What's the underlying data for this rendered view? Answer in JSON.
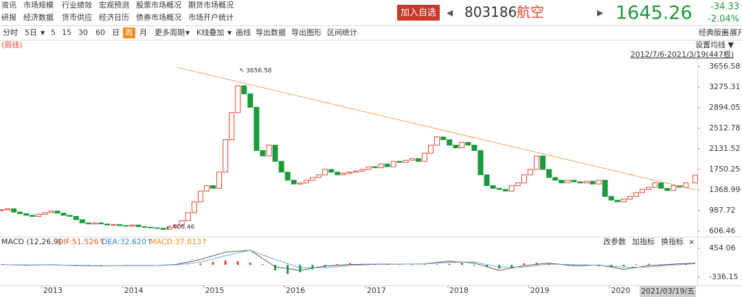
{
  "nav": {
    "row1": [
      "资讯",
      "市场规模",
      "行业绩效",
      "宏观预测",
      "股票市场概况",
      "期货市场概况"
    ],
    "row2": [
      "研报",
      "经济数据",
      "货币供应",
      "经济日历",
      "债券市场概况",
      "市场开户统计"
    ]
  },
  "header": {
    "add_button": "加入自选",
    "prev": "◀",
    "code": "803186",
    "name": "航空",
    "next": "▶",
    "price": "1645.26",
    "change": "-34.33",
    "change_pct": "-2.04%"
  },
  "toolbar": {
    "items": [
      "分时",
      "5日",
      "▼",
      "5",
      "15",
      "30",
      "60",
      "日",
      "周",
      "月",
      "更多周期",
      "▼",
      "K线叠加",
      "▼",
      "画线",
      "导出数据",
      "导出图形",
      "区间统计"
    ],
    "active": "周",
    "right": [
      "经典版面",
      "←",
      "展开"
    ]
  },
  "chart_data": [
    {
      "type": "candlestick",
      "period_label": "(周线)",
      "ma_setting": "设置均线 ▼",
      "range_label": "2012/7/6-2021/3/19(447根)",
      "up_color": "#e8412c",
      "down_color": "#1a9a3a",
      "x": [
        0,
        4,
        8,
        12,
        16,
        20,
        24,
        28,
        32,
        36,
        40,
        44,
        48,
        52,
        56,
        60,
        64,
        68,
        72,
        76,
        80,
        84,
        88,
        92,
        96,
        100,
        104,
        108,
        112,
        116,
        120,
        124,
        128,
        132,
        136,
        140,
        144,
        148,
        152,
        156,
        160,
        164,
        168,
        172,
        176,
        180,
        184,
        188,
        192,
        196,
        200,
        204,
        208,
        212,
        216,
        220,
        224,
        228,
        232,
        236,
        240,
        244,
        248,
        252,
        256,
        260,
        264,
        268,
        272,
        276,
        280,
        284,
        288,
        292,
        296,
        300,
        304,
        308,
        312,
        316,
        320,
        324,
        328,
        332,
        336,
        340,
        344,
        348,
        352,
        356,
        360,
        364,
        368,
        372,
        376,
        380,
        384,
        388,
        392,
        396,
        400,
        404,
        408,
        412,
        416,
        420,
        424,
        428,
        432,
        436,
        440,
        446
      ],
      "values": [
        1000,
        1020,
        960,
        930,
        900,
        880,
        920,
        950,
        980,
        940,
        900,
        880,
        820,
        760,
        740,
        760,
        740,
        720,
        730,
        710,
        700,
        720,
        690,
        680,
        670,
        660,
        640,
        680,
        720,
        800,
        950,
        1150,
        1350,
        1450,
        1400,
        1700,
        2300,
        2800,
        3300,
        3150,
        2900,
        2100,
        2000,
        2200,
        1900,
        1700,
        1550,
        1480,
        1500,
        1550,
        1600,
        1650,
        1750,
        1700,
        1650,
        1680,
        1700,
        1720,
        1750,
        1800,
        1780,
        1850,
        1800,
        1900,
        1880,
        1920,
        1950,
        1900,
        2050,
        2200,
        2350,
        2300,
        2200,
        2150,
        2250,
        2200,
        2100,
        1650,
        1450,
        1400,
        1380,
        1350,
        1450,
        1500,
        1650,
        1750,
        2000,
        1750,
        1600,
        1550,
        1500,
        1550,
        1520,
        1500,
        1530,
        1480,
        1550,
        1250,
        1180,
        1150,
        1200,
        1250,
        1320,
        1380,
        1420,
        1500,
        1400,
        1360,
        1450,
        1420,
        1500,
        1645.26
      ],
      "trendline": {
        "x": [
          113,
          446
        ],
        "values": [
          3640,
          1370
        ],
        "color": "#f5a05a"
      },
      "extremes": [
        {
          "x": 152,
          "value": 3656.58
        },
        {
          "x": 105,
          "value": 606.46
        }
      ],
      "xlim": [
        0,
        446
      ],
      "ylim": [
        505,
        4100
      ],
      "yticks": [
        3656.58,
        3275.31,
        2894.05,
        2512.78,
        2131.52,
        1750.25,
        1368.99,
        987.72,
        606.46
      ],
      "xticks": [
        {
          "value": 26,
          "label": "2013"
        },
        {
          "value": 78,
          "label": "2014"
        },
        {
          "value": 130,
          "label": "2015"
        },
        {
          "value": 182,
          "label": "2016"
        },
        {
          "value": 234,
          "label": "2017"
        },
        {
          "value": 287,
          "label": "2018"
        },
        {
          "value": 339,
          "label": "2019"
        },
        {
          "value": 391,
          "label": "2020"
        }
      ],
      "cursor_label": "2021/03/19/五"
    },
    {
      "type": "macd",
      "title": "MACD (12,26,9)",
      "controls": [
        "改参数",
        "加指标",
        "换指标",
        "×"
      ],
      "xlim": [
        0,
        446
      ],
      "ylim": [
        -560,
        530
      ],
      "yticks": [
        454.06,
        -336.15
      ],
      "line_x": [
        0,
        16,
        32,
        48,
        64,
        80,
        96,
        112,
        128,
        144,
        160,
        176,
        192,
        208,
        224,
        240,
        256,
        272,
        288,
        304,
        320,
        336,
        352,
        368,
        384,
        400,
        416,
        432,
        446
      ],
      "series": [
        {
          "name": "DIF:51.526↑",
          "color": "#e4572e",
          "line_color": "#555555",
          "values": [
            10,
            -10,
            5,
            -20,
            -30,
            -20,
            -20,
            10,
            150,
            350,
            400,
            -50,
            -150,
            -30,
            10,
            20,
            20,
            30,
            100,
            50,
            -150,
            -20,
            50,
            -30,
            0,
            -120,
            -20,
            20,
            51.526
          ]
        },
        {
          "name": "DEA:32.620↑",
          "color": "#3a7bd5",
          "line_color": "#6aa6e8",
          "values": [
            5,
            0,
            0,
            -10,
            -25,
            -25,
            -20,
            0,
            80,
            250,
            400,
            150,
            -80,
            -80,
            -10,
            10,
            20,
            25,
            70,
            80,
            -60,
            -60,
            20,
            10,
            -10,
            -60,
            -60,
            0,
            32.62
          ]
        },
        {
          "name": "MACD:37.813↑",
          "color": "#f08a24",
          "up_color": "#e8412c",
          "down_color": "#1a9a3a",
          "x": [
            0,
            8,
            16,
            24,
            32,
            40,
            48,
            56,
            64,
            72,
            80,
            88,
            96,
            104,
            112,
            120,
            128,
            136,
            144,
            152,
            160,
            168,
            176,
            184,
            192,
            200,
            208,
            216,
            224,
            232,
            240,
            248,
            256,
            264,
            272,
            280,
            288,
            296,
            304,
            312,
            320,
            328,
            336,
            344,
            352,
            360,
            368,
            376,
            384,
            392,
            400,
            408,
            416,
            424,
            432,
            440
          ],
          "values": [
            10,
            5,
            -10,
            -5,
            8,
            6,
            -8,
            -10,
            -10,
            -5,
            5,
            4,
            0,
            5,
            3,
            10,
            40,
            80,
            120,
            100,
            60,
            20,
            -150,
            -250,
            -200,
            -120,
            -60,
            20,
            50,
            30,
            20,
            15,
            10,
            15,
            20,
            15,
            30,
            60,
            -20,
            -60,
            -100,
            -80,
            40,
            60,
            30,
            10,
            -10,
            -20,
            -30,
            -60,
            -40,
            20,
            30,
            20,
            30,
            37.813
          ]
        }
      ]
    }
  ]
}
